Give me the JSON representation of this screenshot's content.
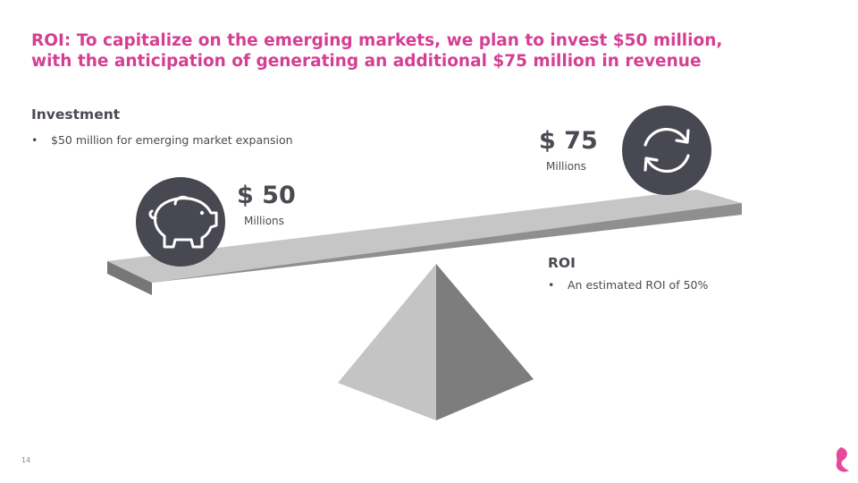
{
  "title": {
    "line1": "ROI: To capitalize on the emerging markets, we plan to invest $50 million,",
    "line2": "with the anticipation of generating an additional $75 million in revenue"
  },
  "investment": {
    "heading": "Investment",
    "bullets": [
      "$50 million for emerging market expansion"
    ]
  },
  "left_value": {
    "amount": "$ 50",
    "unit": "Millions",
    "icon": "piggy-bank-icon"
  },
  "right_value": {
    "amount": "$ 75",
    "unit": "Millions",
    "icon": "refresh-cycle-icon"
  },
  "roi": {
    "heading": "ROI",
    "bullets": [
      "An estimated ROI of 50%"
    ]
  },
  "page_number": "14",
  "colors": {
    "accent": "#d43f93",
    "text": "#4a4a52",
    "icon_circle": "#484853",
    "beam_top": "#c6c6c6",
    "beam_side": "#8f8f8f",
    "pyramid_light": "#c4c4c4",
    "pyramid_dark": "#7d7d7d"
  },
  "logo": "brand-logo-icon"
}
